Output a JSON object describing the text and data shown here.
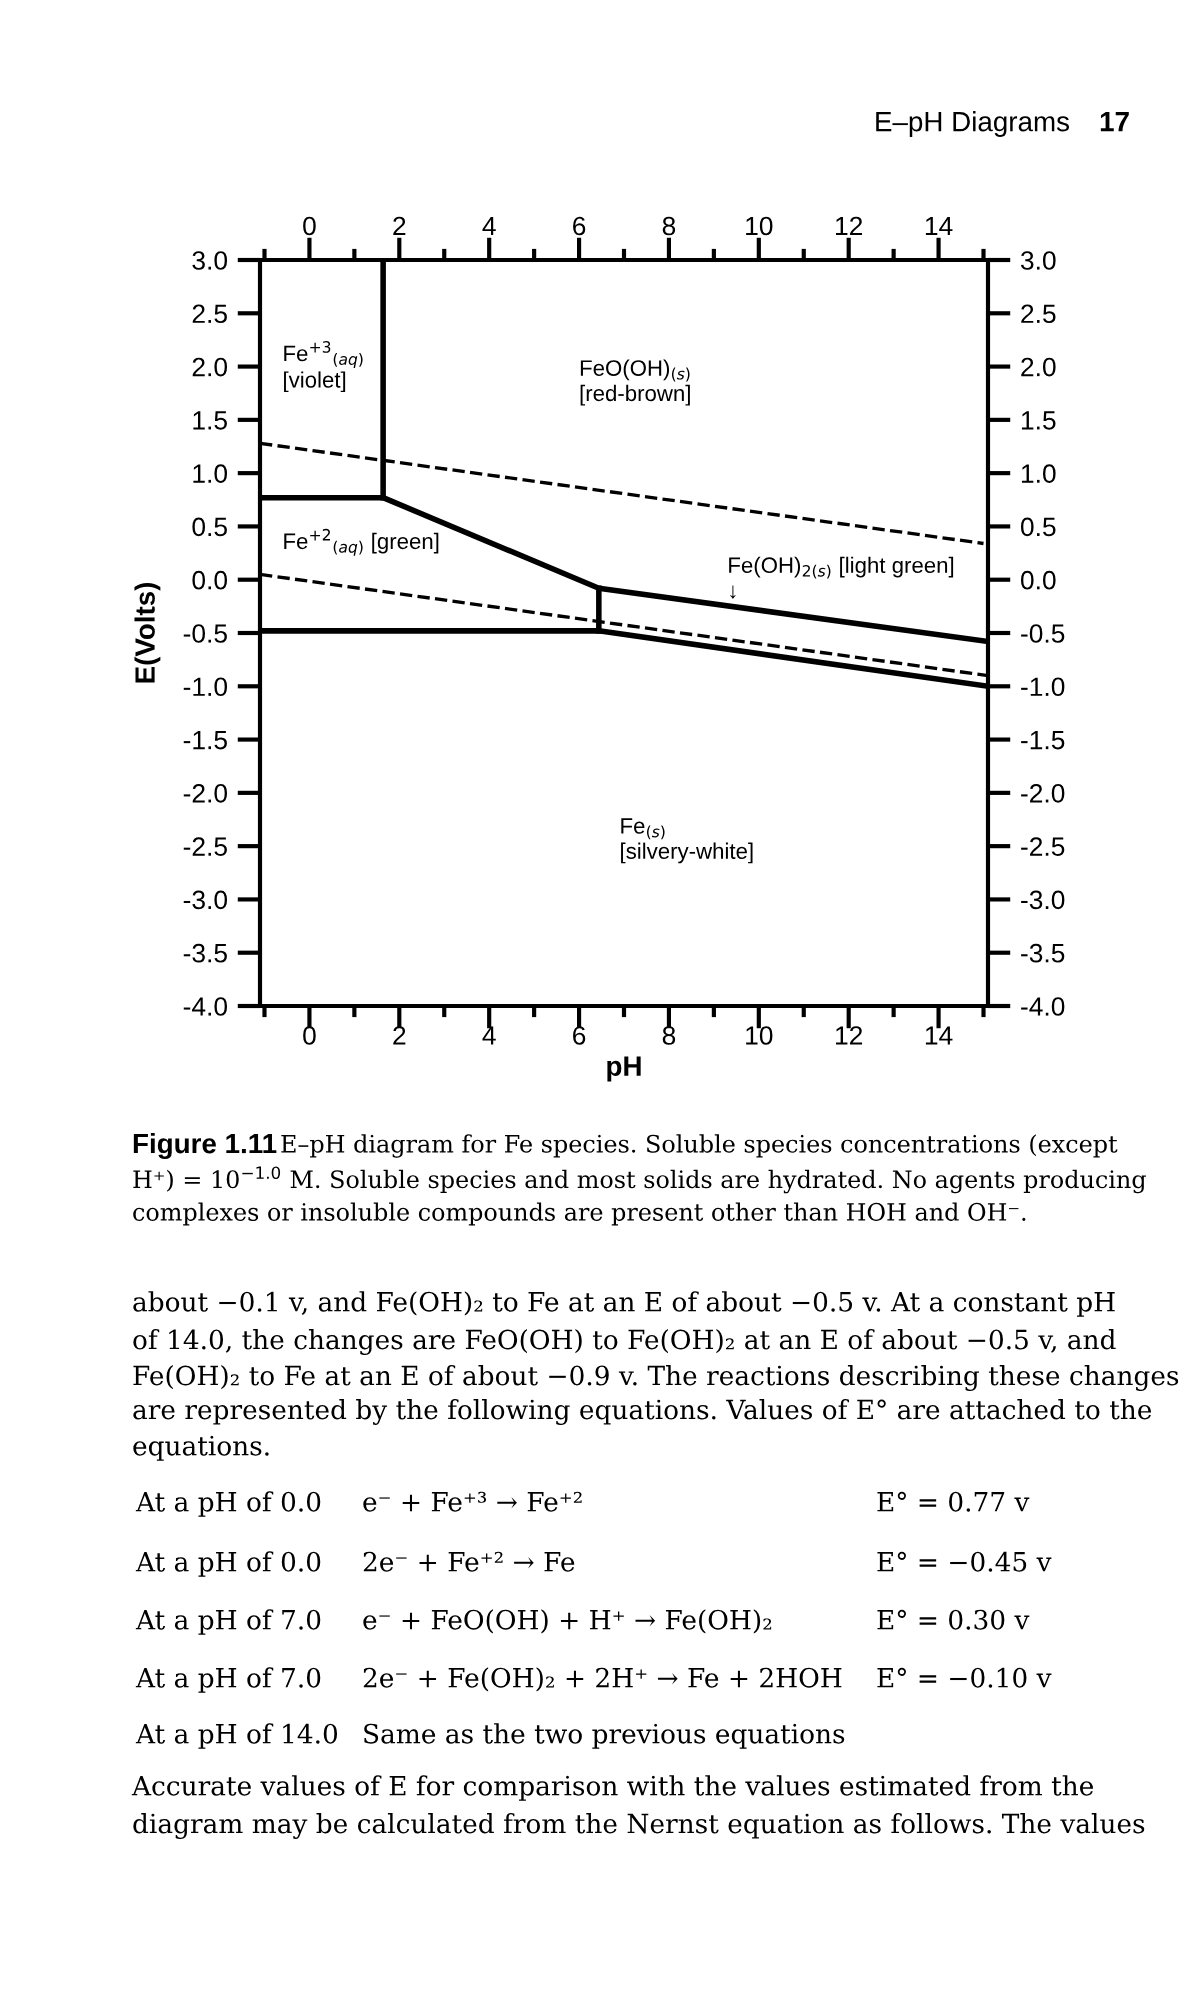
{
  "chart_data": {
    "type": "line",
    "xlabel": "pH",
    "ylabel": "E(Volts)",
    "legend": false,
    "grid": false,
    "marker": "none",
    "xlim": [
      -1.1,
      15.1
    ],
    "x2lim": [
      -1.1,
      15.1
    ],
    "ylim": [
      -4.0,
      3.0
    ],
    "y2lim": [
      -4.0,
      3.0
    ],
    "xticks": [
      {
        "value": -1,
        "label": null
      },
      0,
      {
        "value": 1,
        "label": null
      },
      2,
      {
        "value": 3,
        "label": null
      },
      4,
      {
        "value": 5,
        "label": null
      },
      6,
      {
        "value": 7,
        "label": null
      },
      8,
      {
        "value": 9,
        "label": null
      },
      10,
      {
        "value": 11,
        "label": null
      },
      12,
      {
        "value": 13,
        "label": null
      },
      14,
      {
        "value": 15,
        "label": null
      }
    ],
    "x2ticks": [
      {
        "value": -1,
        "label": null
      },
      0,
      {
        "value": 1,
        "label": null
      },
      2,
      {
        "value": 3,
        "label": null
      },
      4,
      {
        "value": 5,
        "label": null
      },
      6,
      {
        "value": 7,
        "label": null
      },
      8,
      {
        "value": 9,
        "label": null
      },
      10,
      {
        "value": 11,
        "label": null
      },
      12,
      {
        "value": 13,
        "label": null
      },
      14,
      {
        "value": 15,
        "label": null
      }
    ],
    "yticks": [
      {
        "value": 3.0,
        "label": "3.0"
      },
      {
        "value": 2.5,
        "label": "2.5"
      },
      {
        "value": 2.0,
        "label": "2.0"
      },
      {
        "value": 1.5,
        "label": "1.5"
      },
      {
        "value": 1.0,
        "label": "1.0"
      },
      {
        "value": 0.5,
        "label": "0.5"
      },
      {
        "value": 0.0,
        "label": "0.0"
      },
      {
        "value": -0.5,
        "label": "-0.5"
      },
      {
        "value": -1.0,
        "label": "-1.0"
      },
      {
        "value": -1.5,
        "label": "-1.5"
      },
      {
        "value": -2.0,
        "label": "-2.0"
      },
      {
        "value": -2.5,
        "label": "-2.5"
      },
      {
        "value": -3.0,
        "label": "-3.0"
      },
      {
        "value": -3.5,
        "label": "-3.5"
      },
      {
        "value": -4.0,
        "label": "-4.0"
      }
    ],
    "y2ticks": [
      {
        "value": 3.0,
        "label": "3.0"
      },
      {
        "value": 2.5,
        "label": "2.5"
      },
      {
        "value": 2.0,
        "label": "2.0"
      },
      {
        "value": 1.5,
        "label": "1.5"
      },
      {
        "value": 1.0,
        "label": "1.0"
      },
      {
        "value": 0.5,
        "label": "0.5"
      },
      {
        "value": 0.0,
        "label": "0.0"
      },
      {
        "value": -0.5,
        "label": "-0.5"
      },
      {
        "value": -1.0,
        "label": "-1.0"
      },
      {
        "value": -1.5,
        "label": "-1.5"
      },
      {
        "value": -2.0,
        "label": "-2.0"
      },
      {
        "value": -2.5,
        "label": "-2.5"
      },
      {
        "value": -3.0,
        "label": "-3.0"
      },
      {
        "value": -3.5,
        "label": "-3.5"
      },
      {
        "value": -4.0,
        "label": "-4.0"
      }
    ],
    "series": [
      {
        "color": "#000000",
        "line_style": "solid",
        "x": [
          1.64,
          1.64
        ],
        "values": [
          3.0,
          0.77
        ]
      },
      {
        "color": "#000000",
        "line_style": "solid",
        "x": [
          -1.1,
          1.64,
          6.44,
          15.1
        ],
        "values": [
          0.77,
          0.77,
          -0.08,
          -0.58
        ]
      },
      {
        "color": "#000000",
        "line_style": "solid",
        "x": [
          6.44,
          6.44
        ],
        "values": [
          -0.08,
          -0.48
        ]
      },
      {
        "color": "#000000",
        "line_style": "solid",
        "x": [
          -1.1,
          6.44,
          15.1
        ],
        "values": [
          -0.48,
          -0.48,
          -1.0
        ]
      },
      {
        "color": "#000000",
        "line_style": "dashed",
        "x": [
          -1.1,
          15.0
        ],
        "values": [
          1.28,
          0.34
        ]
      },
      {
        "color": "#000000",
        "line_style": "dashed",
        "x": [
          -1.1,
          15.1
        ],
        "values": [
          0.05,
          -0.9
        ]
      }
    ],
    "annotations": [
      "E–pH Diagrams",
      "17",
      "Figure 1.11",
      "E–pH diagram for Fe species. Soluble species concentrations (except",
      "H⁺) = 10$^{−1.0}$ M. Soluble species and most solids are hydrated. No agents producing",
      "complexes or insoluble compounds are present other than HOH and OH⁻.",
      "about −0.1 v, and Fe(OH)₂ to Fe at an E of about −0.5 v. At a constant pH",
      "of 14.0, the changes are FeO(OH) to Fe(OH)₂ at an E of about −0.5 v, and",
      "Fe(OH)₂ to Fe at an E of about −0.9 v. The reactions describing these changes",
      "are represented by the following equations. Values of E° are attached to the",
      "equations.",
      "At a pH of 0.0",
      "e⁻ + Fe⁺³ → Fe⁺²",
      "E° = 0.77 v",
      "At a pH of 0.0",
      "2e⁻ + Fe⁺² → Fe",
      "E° = −0.45 v",
      "At a pH of 7.0",
      "e⁻ + FeO(OH) + H⁺ → Fe(OH)₂",
      "E° = 0.30 v",
      "At a pH of 7.0",
      "2e⁻ + Fe(OH)₂ + 2H⁺ → Fe + 2HOH",
      "E° = −0.10 v",
      "At a pH of 14.0",
      "Same as the two previous equations",
      "Accurate values of E for comparison with the values estimated from the",
      "diagram may be calculated from the Nernst equation as follows. The values",
      "Fe$^{+3}$$_{(aq)}$\n[violet]",
      "FeO(OH)$_{(s)}$\n[red-brown]",
      "Fe$^{+2}$$_{(aq)}$ [green]",
      "Fe(OH)$_{2(s)}$ [light green]\n↓",
      "Fe$_{(s)}$\n[silvery-white]"
    ]
  }
}
